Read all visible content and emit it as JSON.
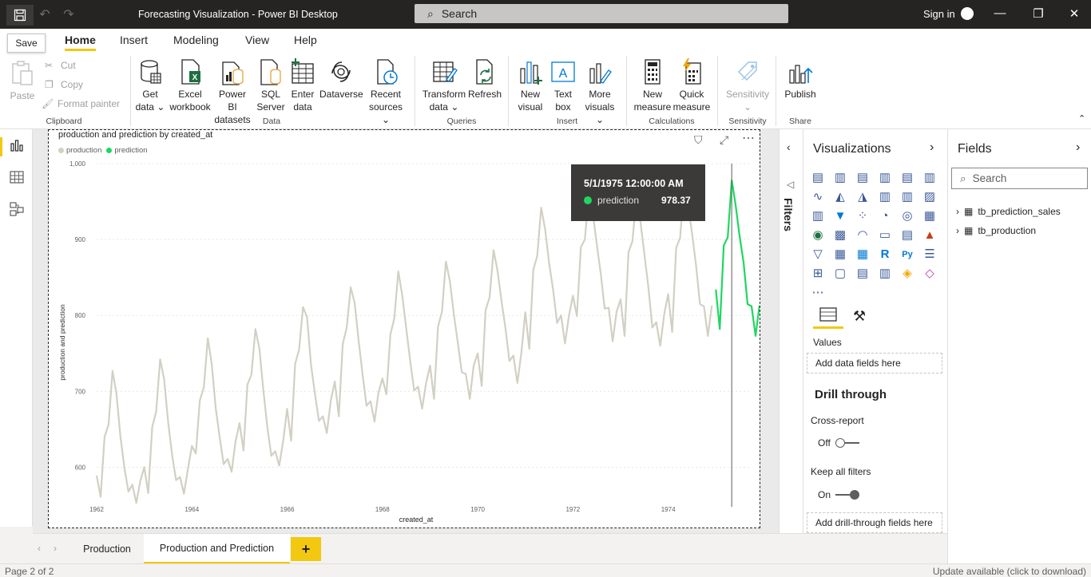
{
  "app": {
    "title": "Forecasting Visualization - Power BI Desktop",
    "search_placeholder": "Search",
    "signin": "Sign in",
    "save_tooltip": "Save"
  },
  "menu": {
    "tabs": [
      "Home",
      "Insert",
      "Modeling",
      "View",
      "Help"
    ],
    "active": "Home"
  },
  "ribbon": {
    "clipboard": {
      "paste": "Paste",
      "cut": "Cut",
      "copy": "Copy",
      "format_painter": "Format painter",
      "label": "Clipboard"
    },
    "data": {
      "get_data": [
        "Get",
        "data"
      ],
      "excel": [
        "Excel",
        "workbook"
      ],
      "pbi_datasets": [
        "Power BI",
        "datasets"
      ],
      "sql": [
        "SQL",
        "Server"
      ],
      "enter_data": [
        "Enter",
        "data"
      ],
      "dataverse": "Dataverse",
      "recent": [
        "Recent",
        "sources"
      ],
      "label": "Data"
    },
    "queries": {
      "transform": [
        "Transform",
        "data"
      ],
      "refresh": "Refresh",
      "label": "Queries"
    },
    "insert": {
      "new_visual": [
        "New",
        "visual"
      ],
      "text_box": [
        "Text",
        "box"
      ],
      "more_visuals": [
        "More",
        "visuals"
      ],
      "label": "Insert"
    },
    "calculations": {
      "new_measure": [
        "New",
        "measure"
      ],
      "quick_measure": [
        "Quick",
        "measure"
      ],
      "label": "Calculations"
    },
    "sensitivity": {
      "btn": "Sensitivity",
      "label": "Sensitivity"
    },
    "share": {
      "publish": "Publish",
      "label": "Share"
    }
  },
  "visual": {
    "title": "production and prediction by created_at",
    "legend": [
      {
        "name": "production",
        "color": "#d2d0c3"
      },
      {
        "name": "prediction",
        "color": "#1ed760"
      }
    ]
  },
  "tooltip": {
    "date": "5/1/1975 12:00:00 AM",
    "series": "prediction",
    "value": "978.37"
  },
  "chart_data": {
    "type": "line",
    "xlabel": "created_at",
    "ylabel": "production and prediction",
    "ylim": [
      550,
      1000
    ],
    "y_ticks": [
      "1,000",
      "900",
      "800",
      "700",
      "600"
    ],
    "x_ticks": [
      "1962",
      "1964",
      "1966",
      "1968",
      "1970",
      "1972",
      "1974"
    ],
    "x_range": [
      "1962-01",
      "1975-10"
    ],
    "grid": true,
    "series": [
      {
        "name": "production",
        "color": "#d2d0c3",
        "x_start": "1962-01",
        "values": [
          589,
          561,
          640,
          656,
          727,
          697,
          640,
          599,
          568,
          577,
          553,
          582,
          600,
          566,
          653,
          673,
          742,
          716,
          660,
          617,
          583,
          587,
          565,
          598,
          628,
          618,
          688,
          705,
          770,
          736,
          678,
          639,
          604,
          611,
          594,
          634,
          658,
          622,
          709,
          722,
          782,
          756,
          702,
          653,
          615,
          621,
          602,
          635,
          677,
          635,
          736,
          755,
          811,
          798,
          735,
          697,
          661,
          667,
          645,
          688,
          713,
          667,
          762,
          784,
          837,
          817,
          767,
          722,
          681,
          687,
          660,
          698,
          717,
          696,
          775,
          796,
          858,
          826,
          783,
          740,
          701,
          706,
          677,
          711,
          734,
          690,
          785,
          805,
          871,
          845,
          801,
          764,
          725,
          723,
          690,
          734,
          750,
          707,
          807,
          824,
          886,
          859,
          819,
          783,
          740,
          747,
          711,
          751,
          804,
          756,
          860,
          878,
          942,
          913,
          869,
          834,
          790,
          800,
          763,
          800,
          826,
          799,
          890,
          900,
          961,
          935,
          894,
          855,
          809,
          810,
          766,
          805,
          821,
          773,
          883,
          898,
          957,
          924,
          881,
          837,
          784,
          791,
          760,
          802,
          828,
          778,
          889,
          902,
          969,
          947,
          908,
          867,
          815,
          812,
          773,
          813
        ]
      },
      {
        "name": "prediction",
        "color": "#1ed760",
        "x_start": "1975-01",
        "values": [
          834,
          782,
          892,
          903,
          978,
          945,
          904,
          869,
          815,
          812,
          773,
          813
        ]
      }
    ]
  },
  "filters_label": "Filters",
  "vizpane": {
    "title": "Visualizations",
    "values_label": "Values",
    "add_data": "Add data fields here",
    "drill_title": "Drill through",
    "cross_report": "Cross-report",
    "cross_state": "Off",
    "keep_filters": "Keep all filters",
    "keep_state": "On",
    "add_drill": "Add drill-through fields here"
  },
  "fields": {
    "title": "Fields",
    "search": "Search",
    "tables": [
      "tb_prediction_sales",
      "tb_production"
    ]
  },
  "pages": {
    "tabs": [
      "Production",
      "Production and Prediction"
    ],
    "active": 1,
    "add": "+"
  },
  "status": {
    "page": "Page 2 of 2",
    "update": "Update available (click to download)"
  }
}
